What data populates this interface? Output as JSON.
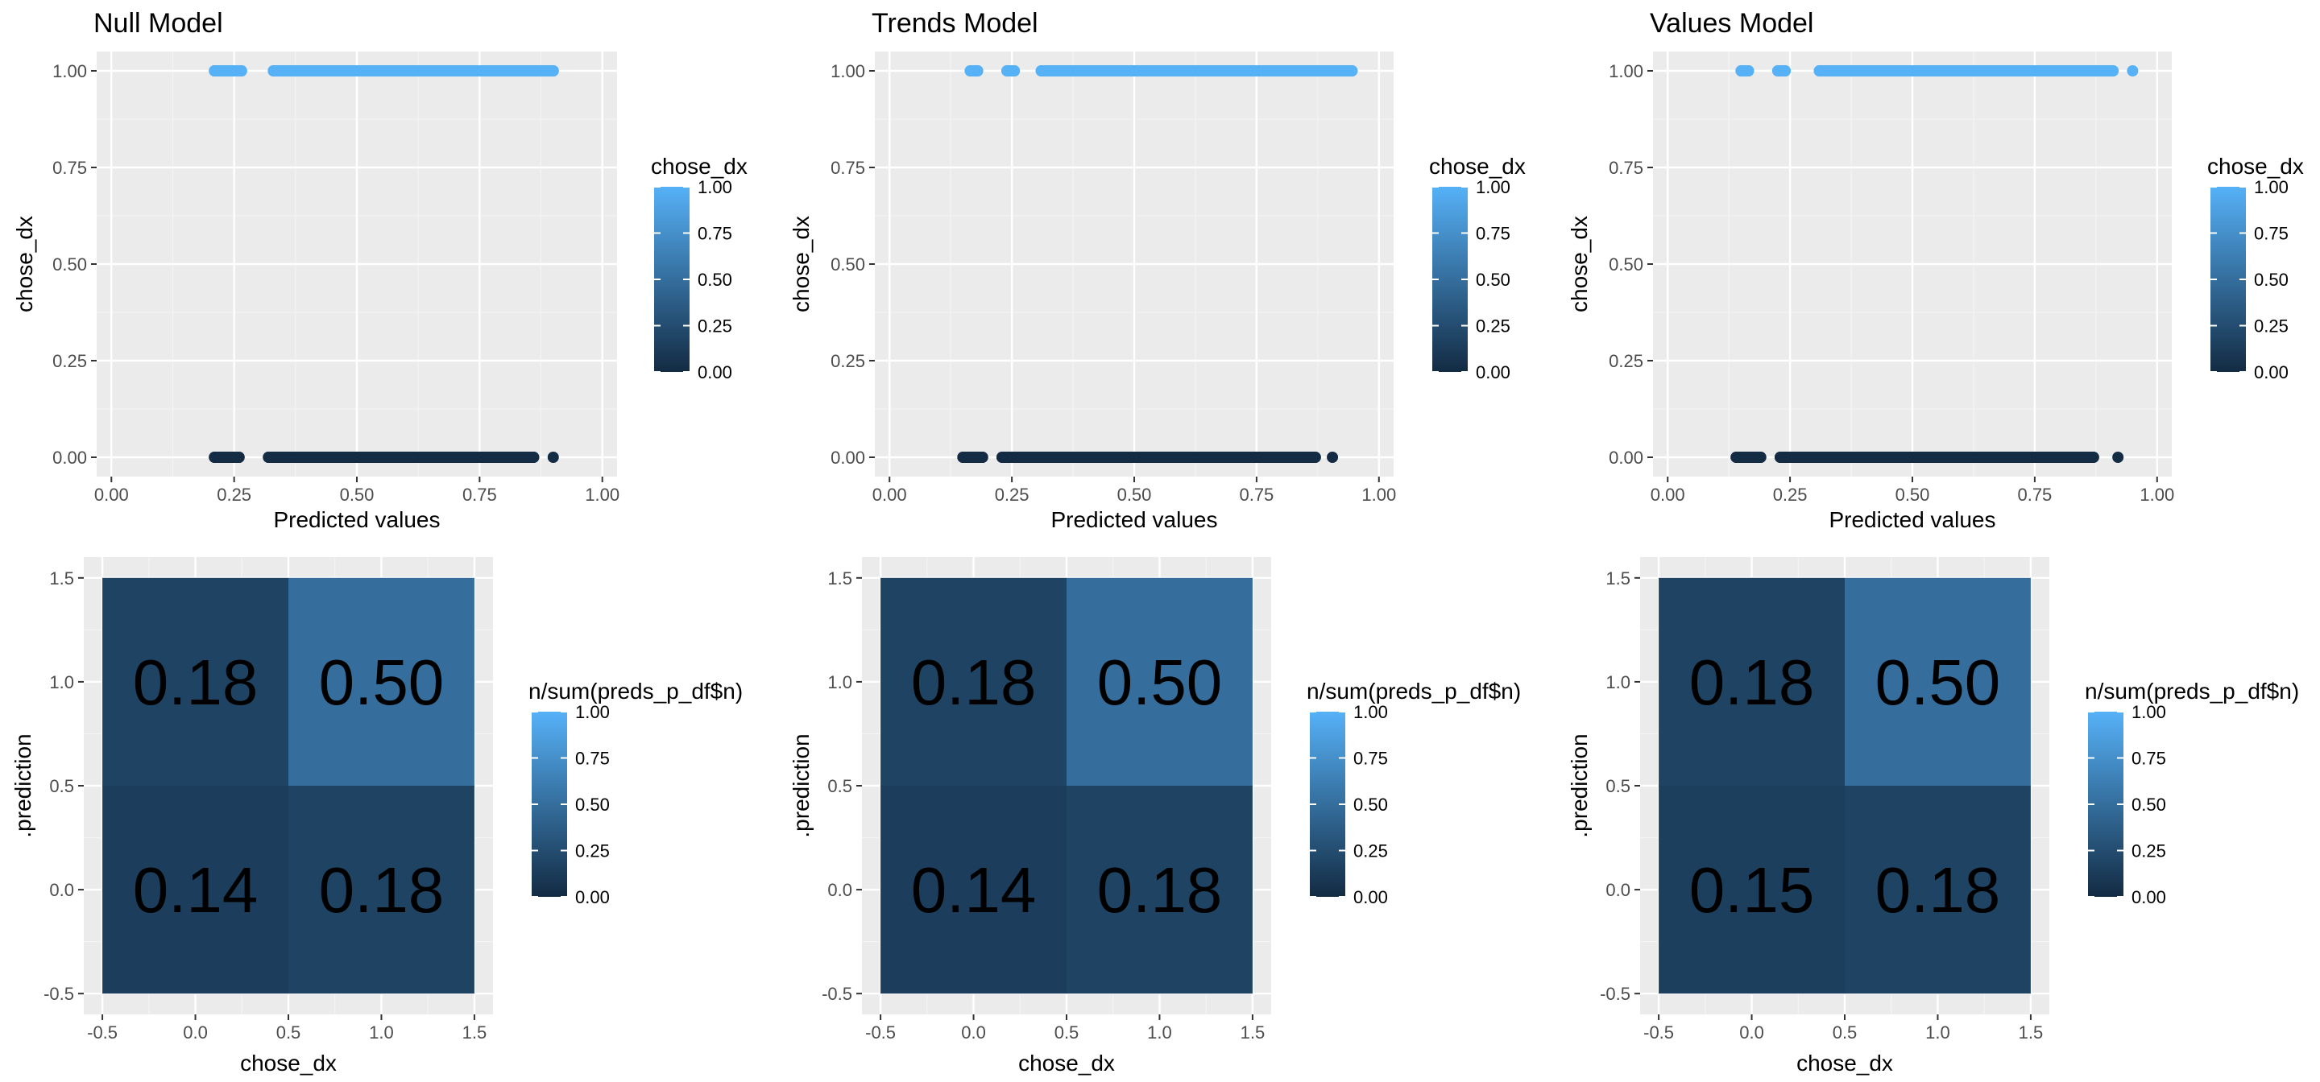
{
  "colors": {
    "panel_bg": "#ebebeb",
    "grid_major": "#ffffff",
    "grid_minor": "#f4f4f4",
    "gradient_low": "#132b43",
    "gradient_high": "#56b1f7"
  },
  "chart_data": [
    {
      "type": "scatter",
      "title": "Null Model",
      "xlabel": "Predicted values",
      "ylabel": "chose_dx",
      "xlim": [
        -0.03,
        1.03
      ],
      "ylim": [
        -0.05,
        1.05
      ],
      "xticks": [
        0,
        0.25,
        0.5,
        0.75,
        1
      ],
      "xtick_labels": [
        "0.00",
        "0.25",
        "0.50",
        "0.75",
        "1.00"
      ],
      "yticks": [
        0,
        0.25,
        0.5,
        0.75,
        1
      ],
      "ytick_labels": [
        "0.00",
        "0.25",
        "0.50",
        "0.75",
        "1.00"
      ],
      "legend": {
        "title": "chose_dx",
        "position": "right",
        "ticks": [
          0,
          0.25,
          0.5,
          0.75,
          1
        ],
        "tick_labels": [
          "0.00",
          "0.25",
          "0.50",
          "0.75",
          "1.00"
        ]
      },
      "series": [
        {
          "y": 1,
          "color_value": 1,
          "x": [
            0.21,
            0.245,
            0.265,
            0.33,
            0.36,
            0.39,
            0.42,
            0.45,
            0.48,
            0.51,
            0.54,
            0.57,
            0.6,
            0.63,
            0.66,
            0.69,
            0.72,
            0.75,
            0.78,
            0.81,
            0.84,
            0.87,
            0.9
          ]
        },
        {
          "y": 0,
          "color_value": 0,
          "x": [
            0.21,
            0.23,
            0.25,
            0.26,
            0.32,
            0.35,
            0.38,
            0.41,
            0.44,
            0.47,
            0.5,
            0.53,
            0.56,
            0.59,
            0.62,
            0.65,
            0.68,
            0.71,
            0.74,
            0.77,
            0.8,
            0.82,
            0.84,
            0.86,
            0.9
          ]
        }
      ]
    },
    {
      "type": "scatter",
      "title": "Trends Model",
      "xlabel": "Predicted values",
      "ylabel": "chose_dx",
      "xlim": [
        -0.03,
        1.03
      ],
      "ylim": [
        -0.05,
        1.05
      ],
      "xticks": [
        0,
        0.25,
        0.5,
        0.75,
        1
      ],
      "xtick_labels": [
        "0.00",
        "0.25",
        "0.50",
        "0.75",
        "1.00"
      ],
      "yticks": [
        0,
        0.25,
        0.5,
        0.75,
        1
      ],
      "ytick_labels": [
        "0.00",
        "0.25",
        "0.50",
        "0.75",
        "1.00"
      ],
      "legend": {
        "title": "chose_dx",
        "position": "right",
        "ticks": [
          0,
          0.25,
          0.5,
          0.75,
          1
        ],
        "tick_labels": [
          "0.00",
          "0.25",
          "0.50",
          "0.75",
          "1.00"
        ]
      },
      "series": [
        {
          "y": 1,
          "color_value": 1,
          "x": [
            0.165,
            0.18,
            0.24,
            0.255,
            0.31,
            0.34,
            0.37,
            0.4,
            0.43,
            0.46,
            0.49,
            0.52,
            0.55,
            0.58,
            0.61,
            0.64,
            0.67,
            0.7,
            0.73,
            0.76,
            0.79,
            0.82,
            0.85,
            0.88,
            0.91,
            0.945
          ]
        },
        {
          "y": 0,
          "color_value": 0,
          "x": [
            0.15,
            0.17,
            0.19,
            0.23,
            0.26,
            0.28,
            0.3,
            0.33,
            0.36,
            0.39,
            0.42,
            0.45,
            0.48,
            0.51,
            0.54,
            0.57,
            0.6,
            0.63,
            0.66,
            0.69,
            0.72,
            0.75,
            0.78,
            0.81,
            0.84,
            0.87,
            0.905
          ]
        }
      ]
    },
    {
      "type": "scatter",
      "title": "Values Model",
      "xlabel": "Predicted values",
      "ylabel": "chose_dx",
      "xlim": [
        -0.03,
        1.03
      ],
      "ylim": [
        -0.05,
        1.05
      ],
      "xticks": [
        0,
        0.25,
        0.5,
        0.75,
        1
      ],
      "xtick_labels": [
        "0.00",
        "0.25",
        "0.50",
        "0.75",
        "1.00"
      ],
      "yticks": [
        0,
        0.25,
        0.5,
        0.75,
        1
      ],
      "ytick_labels": [
        "0.00",
        "0.25",
        "0.50",
        "0.75",
        "1.00"
      ],
      "legend": {
        "title": "chose_dx",
        "position": "right",
        "ticks": [
          0,
          0.25,
          0.5,
          0.75,
          1
        ],
        "tick_labels": [
          "0.00",
          "0.25",
          "0.50",
          "0.75",
          "1.00"
        ]
      },
      "series": [
        {
          "y": 1,
          "color_value": 1,
          "x": [
            0.15,
            0.165,
            0.225,
            0.24,
            0.31,
            0.34,
            0.37,
            0.4,
            0.43,
            0.46,
            0.49,
            0.52,
            0.55,
            0.58,
            0.61,
            0.64,
            0.67,
            0.7,
            0.73,
            0.76,
            0.79,
            0.82,
            0.85,
            0.88,
            0.91,
            0.95
          ]
        },
        {
          "y": 0,
          "color_value": 0,
          "x": [
            0.14,
            0.16,
            0.19,
            0.23,
            0.26,
            0.28,
            0.3,
            0.33,
            0.36,
            0.39,
            0.42,
            0.45,
            0.48,
            0.51,
            0.54,
            0.57,
            0.6,
            0.63,
            0.66,
            0.69,
            0.72,
            0.75,
            0.78,
            0.81,
            0.84,
            0.87,
            0.92
          ]
        }
      ]
    },
    {
      "type": "heatmap",
      "xlabel": "chose_dx",
      "ylabel": ".prediction",
      "xlim": [
        -0.6,
        1.6
      ],
      "ylim": [
        -0.6,
        1.6
      ],
      "xticks": [
        -0.5,
        0,
        0.5,
        1,
        1.5
      ],
      "xtick_labels": [
        "-0.5",
        "0.0",
        "0.5",
        "1.0",
        "1.5"
      ],
      "yticks": [
        -0.5,
        0,
        0.5,
        1,
        1.5
      ],
      "ytick_labels": [
        "-0.5",
        "0.0",
        "0.5",
        "1.0",
        "1.5"
      ],
      "legend": {
        "title": "n/sum(preds_p_df$n)",
        "position": "right",
        "ticks": [
          0,
          0.25,
          0.5,
          0.75,
          1
        ],
        "tick_labels": [
          "0.00",
          "0.25",
          "0.50",
          "0.75",
          "1.00"
        ]
      },
      "cells": [
        {
          "x": 0,
          "y": 1,
          "value": 0.18,
          "label": "0.18"
        },
        {
          "x": 1,
          "y": 1,
          "value": 0.5,
          "label": "0.50"
        },
        {
          "x": 0,
          "y": 0,
          "value": 0.14,
          "label": "0.14"
        },
        {
          "x": 1,
          "y": 0,
          "value": 0.18,
          "label": "0.18"
        }
      ]
    },
    {
      "type": "heatmap",
      "xlabel": "chose_dx",
      "ylabel": ".prediction",
      "xlim": [
        -0.6,
        1.6
      ],
      "ylim": [
        -0.6,
        1.6
      ],
      "xticks": [
        -0.5,
        0,
        0.5,
        1,
        1.5
      ],
      "xtick_labels": [
        "-0.5",
        "0.0",
        "0.5",
        "1.0",
        "1.5"
      ],
      "yticks": [
        -0.5,
        0,
        0.5,
        1,
        1.5
      ],
      "ytick_labels": [
        "-0.5",
        "0.0",
        "0.5",
        "1.0",
        "1.5"
      ],
      "legend": {
        "title": "n/sum(preds_p_df$n)",
        "position": "right",
        "ticks": [
          0,
          0.25,
          0.5,
          0.75,
          1
        ],
        "tick_labels": [
          "0.00",
          "0.25",
          "0.50",
          "0.75",
          "1.00"
        ]
      },
      "cells": [
        {
          "x": 0,
          "y": 1,
          "value": 0.18,
          "label": "0.18"
        },
        {
          "x": 1,
          "y": 1,
          "value": 0.5,
          "label": "0.50"
        },
        {
          "x": 0,
          "y": 0,
          "value": 0.14,
          "label": "0.14"
        },
        {
          "x": 1,
          "y": 0,
          "value": 0.18,
          "label": "0.18"
        }
      ]
    },
    {
      "type": "heatmap",
      "xlabel": "chose_dx",
      "ylabel": ".prediction",
      "xlim": [
        -0.6,
        1.6
      ],
      "ylim": [
        -0.6,
        1.6
      ],
      "xticks": [
        -0.5,
        0,
        0.5,
        1,
        1.5
      ],
      "xtick_labels": [
        "-0.5",
        "0.0",
        "0.5",
        "1.0",
        "1.5"
      ],
      "yticks": [
        -0.5,
        0,
        0.5,
        1,
        1.5
      ],
      "ytick_labels": [
        "-0.5",
        "0.0",
        "0.5",
        "1.0",
        "1.5"
      ],
      "legend": {
        "title": "n/sum(preds_p_df$n)",
        "position": "right",
        "ticks": [
          0,
          0.25,
          0.5,
          0.75,
          1
        ],
        "tick_labels": [
          "0.00",
          "0.25",
          "0.50",
          "0.75",
          "1.00"
        ]
      },
      "cells": [
        {
          "x": 0,
          "y": 1,
          "value": 0.18,
          "label": "0.18"
        },
        {
          "x": 1,
          "y": 1,
          "value": 0.5,
          "label": "0.50"
        },
        {
          "x": 0,
          "y": 0,
          "value": 0.15,
          "label": "0.15"
        },
        {
          "x": 1,
          "y": 0,
          "value": 0.18,
          "label": "0.18"
        }
      ]
    }
  ]
}
